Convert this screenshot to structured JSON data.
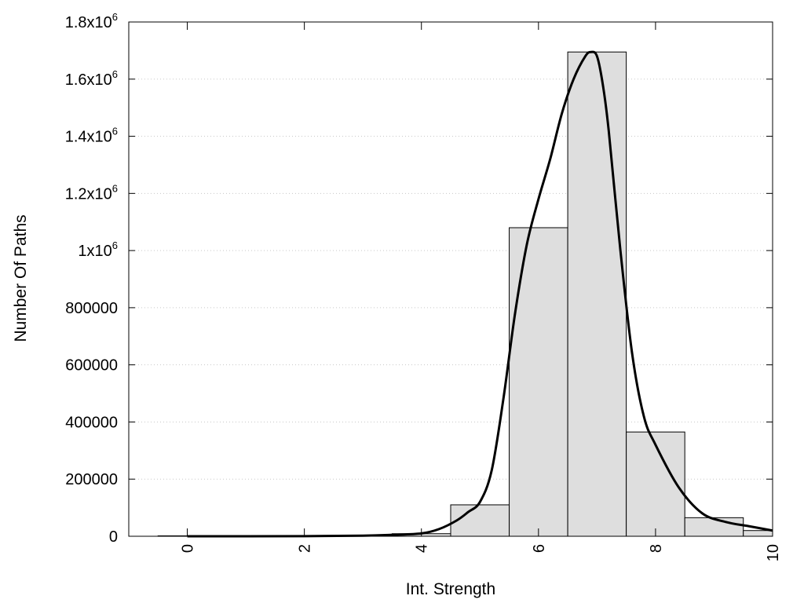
{
  "chart_data": {
    "type": "bar",
    "xlabel": "Int. Strength",
    "ylabel": "Number Of Paths",
    "xlim": [
      -1,
      10
    ],
    "ylim": [
      0,
      1800000
    ],
    "grid": "horizontal dotted",
    "legend": "none",
    "x_ticks": [
      {
        "value": 0,
        "label": "0"
      },
      {
        "value": 2,
        "label": "2"
      },
      {
        "value": 4,
        "label": "4"
      },
      {
        "value": 6,
        "label": "6"
      },
      {
        "value": 8,
        "label": "8"
      },
      {
        "value": 10,
        "label": "10"
      }
    ],
    "y_ticks": [
      {
        "value": 0,
        "label": "0"
      },
      {
        "value": 200000,
        "label": "200000"
      },
      {
        "value": 400000,
        "label": "400000"
      },
      {
        "value": 600000,
        "label": "600000"
      },
      {
        "value": 800000,
        "label": "800000"
      },
      {
        "value": 1000000,
        "label": "1x10",
        "sup": "6"
      },
      {
        "value": 1200000,
        "label": "1.2x10",
        "sup": "6"
      },
      {
        "value": 1400000,
        "label": "1.4x10",
        "sup": "6"
      },
      {
        "value": 1600000,
        "label": "1.6x10",
        "sup": "6"
      },
      {
        "value": 1800000,
        "label": "1.8x10",
        "sup": "6"
      }
    ],
    "bars": [
      {
        "x": 0,
        "value": 1500
      },
      {
        "x": 1,
        "value": 1500
      },
      {
        "x": 2,
        "value": 2000
      },
      {
        "x": 3,
        "value": 3000
      },
      {
        "x": 4,
        "value": 9000
      },
      {
        "x": 5,
        "value": 110000
      },
      {
        "x": 6,
        "value": 1080000
      },
      {
        "x": 7,
        "value": 1695000
      },
      {
        "x": 8,
        "value": 365000
      },
      {
        "x": 9,
        "value": 65000
      },
      {
        "x": 10,
        "value": 20000
      }
    ],
    "fit_curve": {
      "x": [
        0,
        1,
        2,
        3,
        3.5,
        4,
        4.3,
        4.6,
        4.8,
        5,
        5.2,
        5.4,
        5.6,
        5.8,
        6,
        6.2,
        6.4,
        6.6,
        6.8,
        6.9,
        7,
        7.1,
        7.2,
        7.4,
        7.6,
        7.8,
        8,
        8.4,
        8.8,
        9.2,
        9.6,
        10
      ],
      "y": [
        0,
        0,
        500,
        2000,
        5000,
        10000,
        25000,
        55000,
        85000,
        120000,
        230000,
        480000,
        780000,
        1020000,
        1180000,
        1320000,
        1480000,
        1600000,
        1680000,
        1695000,
        1680000,
        1580000,
        1420000,
        1000000,
        640000,
        420000,
        320000,
        170000,
        80000,
        50000,
        35000,
        20000
      ]
    },
    "colors": {
      "bar_fill": "#dedede",
      "bar_stroke": "#000000",
      "curve": "#000000",
      "grid": "#c8c8c8"
    }
  }
}
